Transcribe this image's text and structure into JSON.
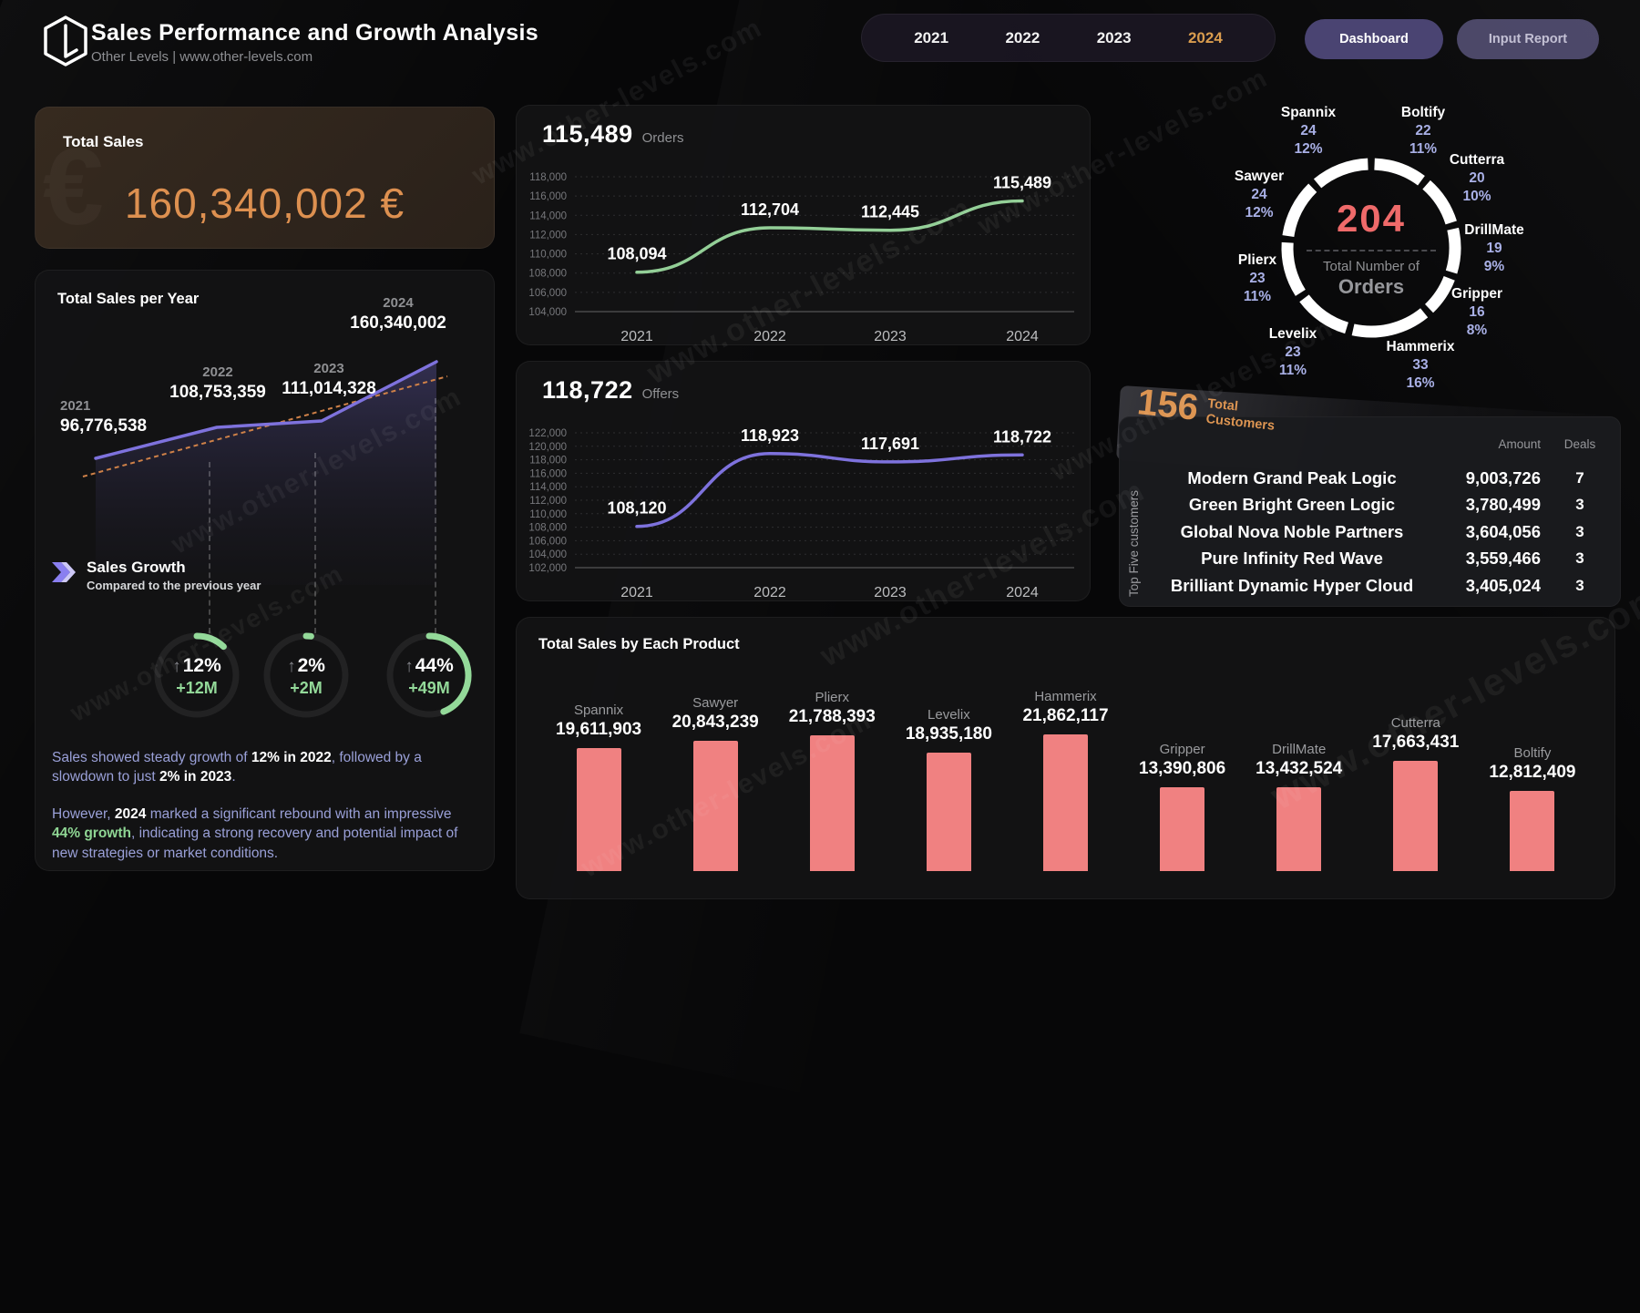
{
  "header": {
    "title": "Sales Performance and Growth Analysis",
    "subtitle": "Other Levels | www.other-levels.com"
  },
  "nav": {
    "years": [
      "2021",
      "2022",
      "2023",
      "2024"
    ],
    "active_year": "2024",
    "dashboard_label": "Dashboard",
    "input_report_label": "Input Report"
  },
  "total_sales": {
    "label": "Total Sales",
    "value": "160,340,002 €",
    "currency_watermark": "€"
  },
  "growth": {
    "title": "Sales Growth",
    "subtitle": "Compared to the previous year",
    "gauges": [
      {
        "percent": "12%",
        "delta": "+12M",
        "fraction": 0.12
      },
      {
        "percent": "2%",
        "delta": "+2M",
        "fraction": 0.02
      },
      {
        "percent": "44%",
        "delta": "+49M",
        "fraction": 0.44
      }
    ]
  },
  "commentary": {
    "p1": [
      {
        "text": "Sales showed steady growth of ",
        "style": "normal"
      },
      {
        "text": "12% in 2022",
        "style": "white"
      },
      {
        "text": ", followed by a slowdown to just ",
        "style": "normal"
      },
      {
        "text": "2% in 2023",
        "style": "white"
      },
      {
        "text": ".",
        "style": "normal"
      }
    ],
    "p2": [
      {
        "text": "However, ",
        "style": "normal"
      },
      {
        "text": "2024",
        "style": "white"
      },
      {
        "text": " marked a significant rebound with an impressive ",
        "style": "normal"
      },
      {
        "text": "44% growth",
        "style": "green"
      },
      {
        "text": ", indicating a strong recovery and potential impact of new strategies or market conditions.",
        "style": "normal"
      }
    ]
  },
  "headlines": {
    "orders": {
      "value": "115,489",
      "label": "Orders"
    },
    "offers": {
      "value": "118,722",
      "label": "Offers"
    }
  },
  "donut": {
    "total": "204",
    "center_line1": "Total Number of",
    "center_line2": "Orders",
    "items": [
      {
        "name": "Spannix",
        "count": "24",
        "pct": "12%"
      },
      {
        "name": "Boltify",
        "count": "22",
        "pct": "11%"
      },
      {
        "name": "Cutterra",
        "count": "20",
        "pct": "10%"
      },
      {
        "name": "DrillMate",
        "count": "19",
        "pct": "9%"
      },
      {
        "name": "Gripper",
        "count": "16",
        "pct": "8%"
      },
      {
        "name": "Hammerix",
        "count": "33",
        "pct": "16%"
      },
      {
        "name": "Levelix",
        "count": "23",
        "pct": "11%"
      },
      {
        "name": "Plierx",
        "count": "23",
        "pct": "11%"
      },
      {
        "name": "Sawyer",
        "count": "24",
        "pct": "12%"
      }
    ]
  },
  "customers": {
    "total": "156",
    "total_label1": "Total",
    "total_label2": "Customers",
    "side_label": "Top Five customers",
    "col_amount": "Amount",
    "col_deals": "Deals",
    "rows": [
      {
        "name": "Modern Grand Peak Logic",
        "amount": "9,003,726",
        "deals": "7"
      },
      {
        "name": "Green Bright Green Logic",
        "amount": "3,780,499",
        "deals": "3"
      },
      {
        "name": "Global Nova Noble Partners",
        "amount": "3,604,056",
        "deals": "3"
      },
      {
        "name": "Pure Infinity Red Wave",
        "amount": "3,559,466",
        "deals": "3"
      },
      {
        "name": "Brilliant Dynamic Hyper Cloud",
        "amount": "3,405,024",
        "deals": "3"
      }
    ]
  },
  "misc": {
    "watermark": "www.other-levels.com"
  },
  "colors": {
    "accent_orange": "#dd9050",
    "accent_gold": "#d99c4e",
    "purple_line": "#7e72dd",
    "green_line": "#93cf97",
    "gauge_green": "#93d999",
    "bar_salmon": "#f08181",
    "donut_red": "#ef6a6a",
    "lavender": "#9aa0d8",
    "button_purple": "#4a4472",
    "trend_orange": "#cf8148"
  },
  "chart_data": [
    {
      "type": "area",
      "title": "Total Sales per Year",
      "categories": [
        "2021",
        "2022",
        "2023",
        "2024"
      ],
      "values": [
        96776538,
        108753359,
        111014328,
        160340002
      ],
      "labels": [
        "96,776,538",
        "108,753,359",
        "111,014,328",
        "160,340,002"
      ],
      "line_color": "#7e72dd",
      "trend_line": "dashed-orange",
      "grid": false,
      "legend": false
    },
    {
      "type": "line",
      "title": "Orders",
      "categories": [
        "2021",
        "2022",
        "2023",
        "2024"
      ],
      "values": [
        108094,
        112704,
        112445,
        115489
      ],
      "labels": [
        "108,094",
        "112,704",
        "112,445",
        "115,489"
      ],
      "ylim": [
        104000,
        118000
      ],
      "ystep": 2000,
      "line_color": "#93cf97",
      "grid": true,
      "legend": false
    },
    {
      "type": "line",
      "title": "Offers",
      "categories": [
        "2021",
        "2022",
        "2023",
        "2024"
      ],
      "values": [
        108120,
        118923,
        117691,
        118722
      ],
      "labels": [
        "108,120",
        "118,923",
        "117,691",
        "118,722"
      ],
      "ylim": [
        102000,
        122000
      ],
      "ystep": 2000,
      "line_color": "#7e72dd",
      "grid": true,
      "legend": false
    },
    {
      "type": "pie",
      "title": "Total Number of Orders",
      "total": 204,
      "categories": [
        "Boltify",
        "Cutterra",
        "DrillMate",
        "Gripper",
        "Hammerix",
        "Levelix",
        "Plierx",
        "Sawyer",
        "Spannix"
      ],
      "values": [
        22,
        20,
        19,
        16,
        33,
        23,
        23,
        24,
        24
      ],
      "percents": [
        11,
        10,
        9,
        8,
        16,
        11,
        11,
        12,
        12
      ],
      "ring_color": "#ffffff",
      "start": "top",
      "direction": "clockwise"
    },
    {
      "type": "bar",
      "title": "Total Sales by Each Product",
      "categories": [
        "Spannix",
        "Sawyer",
        "Plierx",
        "Levelix",
        "Hammerix",
        "Gripper",
        "DrillMate",
        "Cutterra",
        "Boltify"
      ],
      "values": [
        19611903,
        20843239,
        21788393,
        18935180,
        21862117,
        13390806,
        13432524,
        17663431,
        12812409
      ],
      "labels": [
        "19,611,903",
        "20,843,239",
        "21,788,393",
        "18,935,180",
        "21,862,117",
        "13,390,806",
        "13,432,524",
        "17,663,431",
        "12,812,409"
      ],
      "bar_color": "#f08181",
      "baseline": 0,
      "grid": false,
      "legend": false
    }
  ]
}
